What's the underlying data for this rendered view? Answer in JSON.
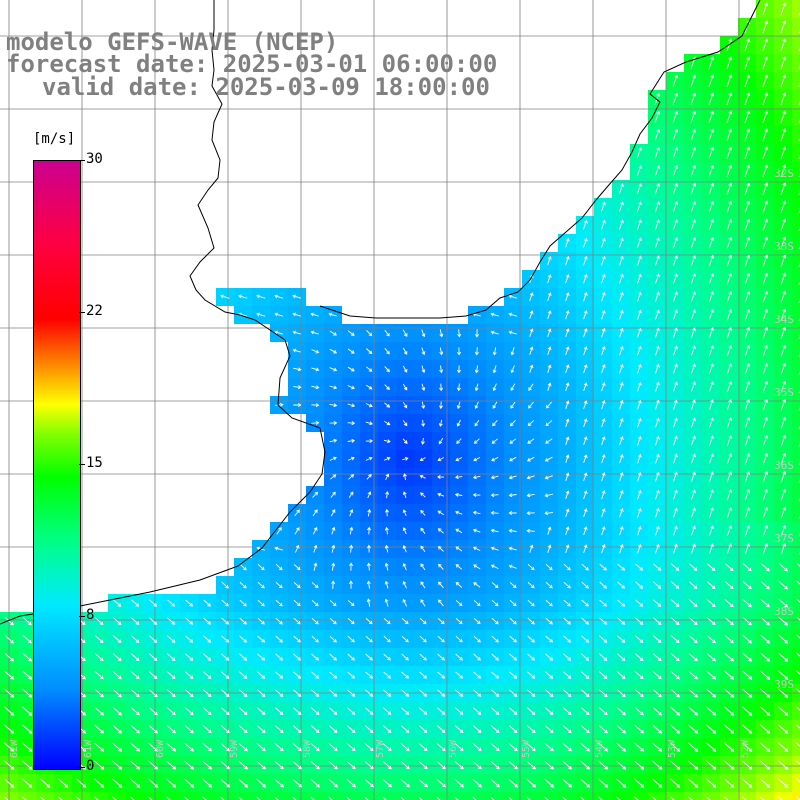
{
  "title": {
    "line1": "modelo GEFS-WAVE (NCEP)",
    "line2": "forecast date: 2025-03-01 06:00:00",
    "line3": "valid date: 2025-03-09 18:00:00"
  },
  "colorbar": {
    "units": "[m/s]",
    "labels": [
      "30",
      "22",
      "15",
      "8",
      "0"
    ],
    "min": 0,
    "max": 30
  },
  "grid": {
    "lat_labels": [
      "32S",
      "33S",
      "34S",
      "35S",
      "36S",
      "37S",
      "38S",
      "39S",
      "40S"
    ],
    "lon_labels": [
      "62W",
      "61W",
      "60W",
      "59W",
      "58W",
      "57W",
      "56W",
      "55W",
      "54W",
      "53W",
      "52W"
    ]
  },
  "field": {
    "variable": "wind speed",
    "arrow_color": "#ffffff"
  }
}
